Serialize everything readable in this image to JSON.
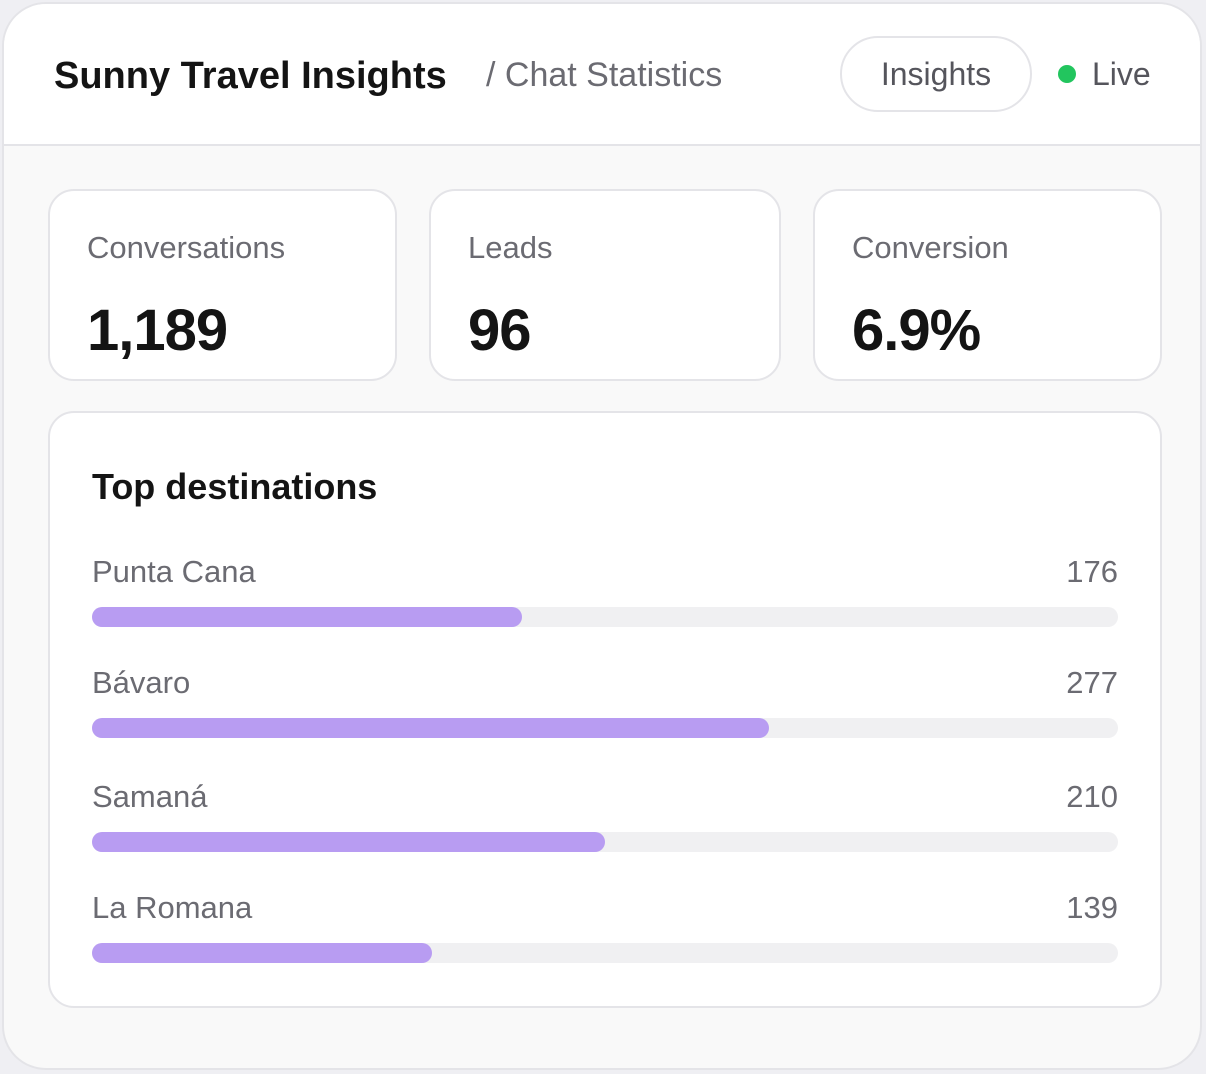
{
  "header": {
    "title": "Sunny Travel Insights",
    "subtitle": "/ Chat Statistics",
    "button": "Insights",
    "status": "Live"
  },
  "stats": [
    {
      "label": "Conversations",
      "value": "1,189"
    },
    {
      "label": "Leads",
      "value": "96"
    },
    {
      "label": "Conversion",
      "value": "6.9%"
    }
  ],
  "chart_data": {
    "type": "bar",
    "title": "Top destinations",
    "categories": [
      "Punta Cana",
      "Bávaro",
      "Samaná",
      "La Romana"
    ],
    "values": [
      176,
      277,
      210,
      139
    ],
    "xlim": [
      0,
      420
    ],
    "color": "#b89cf2"
  }
}
